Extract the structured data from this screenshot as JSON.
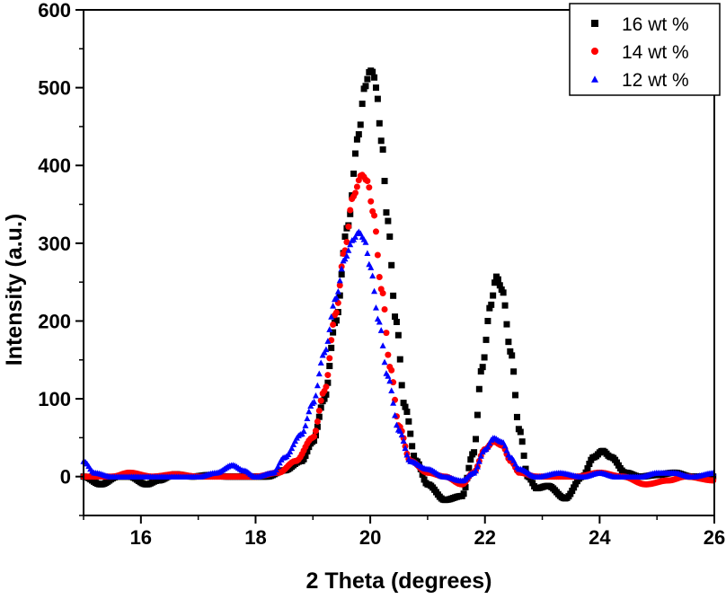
{
  "chart_data": {
    "type": "scatter",
    "title": "",
    "xlabel": "2 Theta (degrees)",
    "ylabel": "Intensity (a.u.)",
    "xlim": [
      15,
      26
    ],
    "ylim": [
      -50,
      600
    ],
    "xticks": [
      "16",
      "18",
      "20",
      "22",
      "24",
      "26"
    ],
    "yticks": [
      "0",
      "100",
      "200",
      "300",
      "400",
      "500",
      "600"
    ],
    "legend_position": "top-right",
    "series": [
      {
        "name": "16 wt %",
        "color": "#000000",
        "marker": "square",
        "x": [
          15.0,
          15.3,
          15.6,
          15.8,
          16.1,
          16.3,
          16.6,
          16.9,
          17.2,
          17.5,
          17.8,
          18.2,
          18.5,
          18.8,
          19.0,
          19.2,
          19.4,
          19.6,
          19.8,
          19.9,
          20.0,
          20.05,
          20.1,
          20.2,
          20.3,
          20.45,
          20.6,
          20.8,
          21.0,
          21.3,
          21.6,
          21.8,
          21.95,
          22.1,
          22.2,
          22.3,
          22.45,
          22.6,
          22.75,
          22.9,
          23.1,
          23.4,
          23.7,
          23.9,
          24.05,
          24.2,
          24.45,
          24.7,
          25.0,
          25.3,
          25.6,
          26.0
        ],
        "y": [
          0,
          -10,
          0,
          0,
          -10,
          -5,
          3,
          0,
          2,
          0,
          0,
          0,
          8,
          20,
          45,
          100,
          200,
          320,
          440,
          500,
          522,
          520,
          500,
          430,
          330,
          200,
          90,
          20,
          -10,
          -30,
          -25,
          30,
          140,
          220,
          257,
          240,
          160,
          60,
          0,
          -15,
          -12,
          -28,
          0,
          25,
          33,
          25,
          5,
          0,
          2,
          5,
          0,
          0
        ]
      },
      {
        "name": "14 wt %",
        "color": "#ff0000",
        "marker": "circle",
        "x": [
          15.0,
          15.5,
          15.8,
          16.2,
          16.6,
          17.0,
          17.5,
          18.0,
          18.4,
          18.7,
          19.0,
          19.2,
          19.4,
          19.55,
          19.7,
          19.85,
          19.95,
          20.05,
          20.2,
          20.35,
          20.5,
          20.7,
          21.0,
          21.3,
          21.6,
          21.8,
          22.0,
          22.15,
          22.3,
          22.45,
          22.6,
          22.9,
          23.2,
          23.6,
          24.0,
          24.4,
          24.8,
          25.2,
          25.5,
          26.0
        ],
        "y": [
          0,
          0,
          5,
          0,
          3,
          0,
          0,
          0,
          5,
          20,
          50,
          110,
          210,
          290,
          360,
          388,
          380,
          340,
          240,
          140,
          65,
          20,
          5,
          0,
          -10,
          5,
          35,
          45,
          40,
          20,
          5,
          0,
          0,
          0,
          5,
          0,
          -10,
          -5,
          0,
          -5
        ]
      },
      {
        "name": "12 wt %",
        "color": "#0000ff",
        "marker": "triangle",
        "x": [
          15.0,
          15.2,
          15.5,
          15.8,
          16.2,
          16.6,
          17.0,
          17.3,
          17.6,
          17.8,
          18.0,
          18.3,
          18.5,
          18.8,
          19.0,
          19.2,
          19.4,
          19.55,
          19.7,
          19.8,
          19.9,
          20.0,
          20.15,
          20.3,
          20.5,
          20.7,
          21.0,
          21.3,
          21.6,
          21.8,
          22.0,
          22.15,
          22.3,
          22.45,
          22.6,
          22.9,
          23.3,
          23.7,
          24.0,
          24.3,
          24.7,
          25.0,
          25.3,
          25.6,
          26.0
        ],
        "y": [
          20,
          5,
          0,
          0,
          0,
          0,
          0,
          5,
          15,
          8,
          0,
          5,
          25,
          55,
          95,
          160,
          230,
          280,
          305,
          315,
          305,
          270,
          200,
          130,
          60,
          20,
          10,
          0,
          -5,
          5,
          35,
          50,
          45,
          25,
          10,
          0,
          5,
          0,
          5,
          0,
          0,
          5,
          5,
          0,
          5
        ]
      }
    ]
  }
}
